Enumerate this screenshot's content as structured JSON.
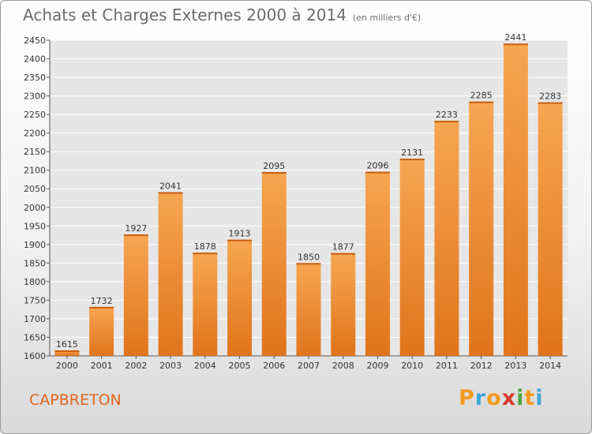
{
  "title": "Achats et Charges Externes 2000 à 2014",
  "subtitle": "(en milliers d'€)",
  "city": "CAPBRETON",
  "brand": {
    "letters": [
      "P",
      "r",
      "o",
      "x",
      "i",
      "t",
      "i"
    ],
    "colors": [
      "#f39a1c",
      "#3aa7d8",
      "#f39a1c",
      "#d43b2c",
      "#4fa83f",
      "#f39a1c",
      "#3aa7d8"
    ]
  },
  "colors": {
    "bar_light": "#f7a651",
    "bar_dark": "#e0741c",
    "title": "#6b6b6b",
    "city": "#e0651c"
  },
  "chart_data": {
    "type": "bar",
    "title": "Achats et Charges Externes 2000 à 2014",
    "subtitle": "(en milliers d'€)",
    "categories": [
      "2000",
      "2001",
      "2002",
      "2003",
      "2004",
      "2005",
      "2006",
      "2007",
      "2008",
      "2009",
      "2010",
      "2011",
      "2012",
      "2013",
      "2014"
    ],
    "values": [
      1615,
      1732,
      1927,
      2041,
      1878,
      1913,
      2095,
      1850,
      1877,
      2096,
      2131,
      2233,
      2285,
      2441,
      2283
    ],
    "ylim": [
      1600,
      2450
    ],
    "yticks": [
      1600,
      1650,
      1700,
      1750,
      1800,
      1850,
      1900,
      1950,
      2000,
      2050,
      2100,
      2150,
      2200,
      2250,
      2300,
      2350,
      2400,
      2450
    ],
    "grid": true,
    "legend": "none"
  }
}
